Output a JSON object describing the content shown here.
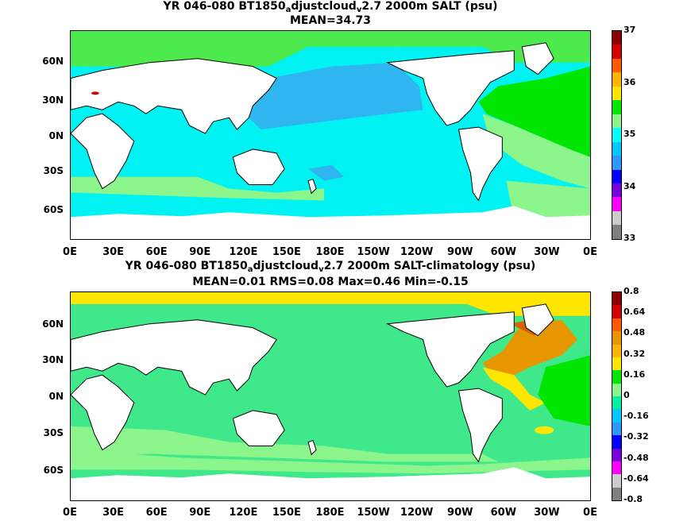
{
  "panels": [
    {
      "title_line1_a": "YR 046-080 BT1850",
      "title_line1_sub1": "a",
      "title_line1_b": "djustcloud",
      "title_line1_sub2": "v",
      "title_line1_c": "2.7 2000m SALT (psu)",
      "title_line2": "MEAN=34.73",
      "colorbar_labels": [
        "37",
        "36",
        "35",
        "34",
        "33"
      ],
      "colorbar_colors": [
        "#8c0000",
        "#d70000",
        "#ff5a00",
        "#ffb400",
        "#ffe600",
        "#00e600",
        "#8cf58c",
        "#00ffff",
        "#00c8ff",
        "#2d96ff",
        "#0000ff",
        "#7800dc",
        "#ff00ff",
        "#cccccc",
        "#808080"
      ]
    },
    {
      "title_line1_a": "YR 046-080 BT1850",
      "title_line1_sub1": "a",
      "title_line1_b": "djustcloud",
      "title_line1_sub2": "v",
      "title_line1_c": "2.7 2000m SALT-climatology (psu)",
      "title_line2": "MEAN=0.01   RMS=0.08   Max=0.46   Min=-0.15",
      "colorbar_labels": [
        "0.8",
        "0.64",
        "0.48",
        "0.32",
        "0.16",
        "0",
        "-0.16",
        "-0.32",
        "-0.48",
        "-0.64",
        "-0.8"
      ],
      "colorbar_colors": [
        "#8c0000",
        "#d70000",
        "#ff5a00",
        "#e69600",
        "#ffb400",
        "#ffe600",
        "#00e600",
        "#8cf58c",
        "#00f2a0",
        "#00c8ff",
        "#2d96ff",
        "#0000ff",
        "#7800dc",
        "#ff00ff",
        "#cccccc",
        "#808080"
      ]
    }
  ],
  "lat_labels": [
    "60N",
    "30N",
    "0N",
    "30S",
    "60S"
  ],
  "lon_labels": [
    "0E",
    "30E",
    "60E",
    "90E",
    "120E",
    "150E",
    "180E",
    "150W",
    "120W",
    "90W",
    "60W",
    "30W",
    "0E"
  ]
}
